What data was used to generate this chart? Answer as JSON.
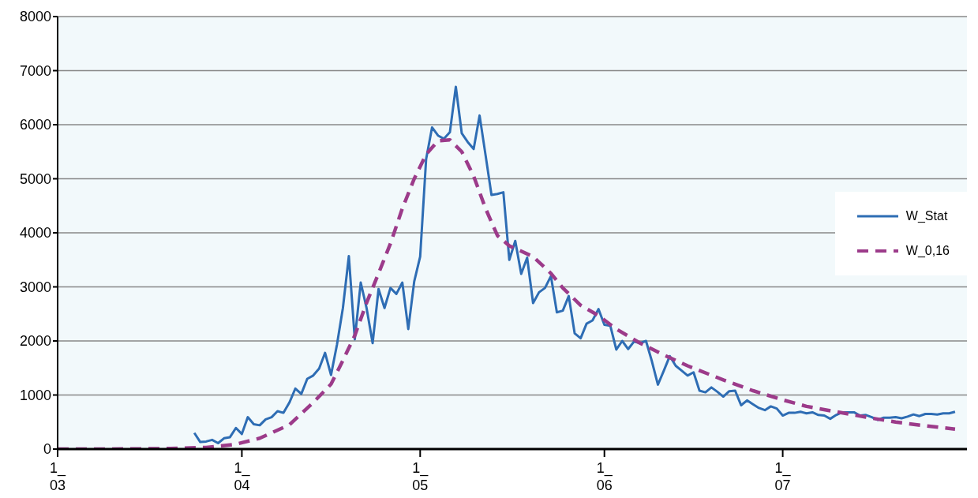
{
  "chart_data": {
    "type": "line",
    "xlim": [
      "--03-01",
      "--08-01"
    ],
    "xticks": [
      {
        "value": "--03-01",
        "label": "1_\n03"
      },
      {
        "value": "--04-01",
        "label": "1_\n04"
      },
      {
        "value": "--05-01",
        "label": "1_\n05"
      },
      {
        "value": "--06-01",
        "label": "1_\n06"
      },
      {
        "value": "--07-01",
        "label": "1_\n07"
      }
    ],
    "ylim": [
      0,
      8000
    ],
    "yticks": [
      0,
      1000,
      2000,
      3000,
      4000,
      5000,
      6000,
      7000,
      8000
    ],
    "grid": "y",
    "legend": "right",
    "marker": "none",
    "series": [
      {
        "name": "W_Stat",
        "color": "#2e6db4",
        "line_style": "solid",
        "x": [
          "--03-24",
          "--03-25",
          "--03-26",
          "--03-27",
          "--03-28",
          "--03-29",
          "--03-30",
          "--03-31",
          "--04-01",
          "--04-02",
          "--04-03",
          "--04-04",
          "--04-05",
          "--04-06",
          "--04-07",
          "--04-08",
          "--04-09",
          "--04-10",
          "--04-11",
          "--04-12",
          "--04-13",
          "--04-14",
          "--04-15",
          "--04-16",
          "--04-17",
          "--04-18",
          "--04-19",
          "--04-20",
          "--04-21",
          "--04-22",
          "--04-23",
          "--04-24",
          "--04-25",
          "--04-26",
          "--04-27",
          "--04-28",
          "--04-29",
          "--04-30",
          "--05-01",
          "--05-02",
          "--05-03",
          "--05-04",
          "--05-05",
          "--05-06",
          "--05-07",
          "--05-08",
          "--05-09",
          "--05-10",
          "--05-11",
          "--05-12",
          "--05-13",
          "--05-14",
          "--05-15",
          "--05-16",
          "--05-17",
          "--05-18",
          "--05-19",
          "--05-20",
          "--05-21",
          "--05-22",
          "--05-23",
          "--05-24",
          "--05-25",
          "--05-26",
          "--05-27",
          "--05-28",
          "--05-29",
          "--05-30",
          "--05-31",
          "--06-01",
          "--06-02",
          "--06-03",
          "--06-04",
          "--06-05",
          "--06-06",
          "--06-07",
          "--06-08",
          "--06-09",
          "--06-10",
          "--06-11",
          "--06-12",
          "--06-13",
          "--06-14",
          "--06-15",
          "--06-16",
          "--06-17",
          "--06-18",
          "--06-19",
          "--06-20",
          "--06-21",
          "--06-22",
          "--06-23",
          "--06-24",
          "--06-25",
          "--06-26",
          "--06-27",
          "--06-28",
          "--06-29",
          "--06-30",
          "--07-01",
          "--07-02",
          "--07-03",
          "--07-04",
          "--07-05",
          "--07-06",
          "--07-07",
          "--07-08",
          "--07-09",
          "--07-10",
          "--07-11",
          "--07-12",
          "--07-13",
          "--07-14",
          "--07-15",
          "--07-16",
          "--07-17",
          "--07-18",
          "--07-19",
          "--07-20",
          "--07-21",
          "--07-22",
          "--07-23",
          "--07-24",
          "--07-25",
          "--07-26",
          "--07-27",
          "--07-28",
          "--07-29",
          "--07-30"
        ],
        "values": [
          300,
          130,
          140,
          170,
          110,
          200,
          220,
          390,
          280,
          590,
          460,
          440,
          550,
          590,
          700,
          670,
          860,
          1120,
          1020,
          1300,
          1360,
          1490,
          1780,
          1370,
          1930,
          2610,
          3570,
          2030,
          3080,
          2600,
          1960,
          2960,
          2610,
          2980,
          2870,
          3080,
          2220,
          3100,
          3560,
          5360,
          5950,
          5800,
          5740,
          5860,
          6700,
          5840,
          5680,
          5550,
          6170,
          5440,
          4700,
          4720,
          4750,
          3500,
          3850,
          3240,
          3540,
          2700,
          2900,
          2980,
          3200,
          2530,
          2560,
          2830,
          2140,
          2050,
          2320,
          2380,
          2590,
          2300,
          2280,
          1840,
          2000,
          1850,
          1990,
          1960,
          2000,
          1620,
          1190,
          1450,
          1720,
          1540,
          1450,
          1360,
          1420,
          1080,
          1050,
          1140,
          1060,
          970,
          1070,
          1080,
          810,
          900,
          830,
          760,
          720,
          790,
          750,
          620,
          670,
          670,
          690,
          660,
          680,
          630,
          620,
          560,
          630,
          680,
          680,
          680,
          620,
          630,
          590,
          540,
          580,
          580,
          590,
          570,
          600,
          640,
          610,
          650,
          650,
          640,
          660,
          660,
          690
        ]
      },
      {
        "name": "W_0,16",
        "color": "#9c3b8a",
        "line_style": "dashed",
        "x": [
          "--03-01",
          "--03-10",
          "--03-20",
          "--03-26",
          "--03-31",
          "--04-04",
          "--04-09",
          "--04-13",
          "--04-16",
          "--04-18",
          "--04-20",
          "--04-22",
          "--04-24",
          "--04-26",
          "--04-28",
          "--04-30",
          "--05-02",
          "--05-04",
          "--05-06",
          "--05-08",
          "--05-10",
          "--05-12",
          "--05-14",
          "--05-16",
          "--05-20",
          "--05-23",
          "--05-25",
          "--05-28",
          "--05-31",
          "--06-03",
          "--06-07",
          "--06-11",
          "--06-15",
          "--06-21",
          "--06-26",
          "--07-01",
          "--07-05",
          "--07-10",
          "--07-15",
          "--07-20",
          "--07-25",
          "--07-30"
        ],
        "values": [
          0,
          0,
          10,
          30,
          90,
          200,
          450,
          860,
          1200,
          1640,
          2100,
          2710,
          3250,
          3800,
          4450,
          5000,
          5450,
          5700,
          5720,
          5500,
          5050,
          4450,
          3950,
          3760,
          3560,
          3250,
          2980,
          2660,
          2470,
          2220,
          1960,
          1740,
          1540,
          1280,
          1080,
          910,
          790,
          690,
          590,
          500,
          430,
          370
        ]
      }
    ]
  }
}
